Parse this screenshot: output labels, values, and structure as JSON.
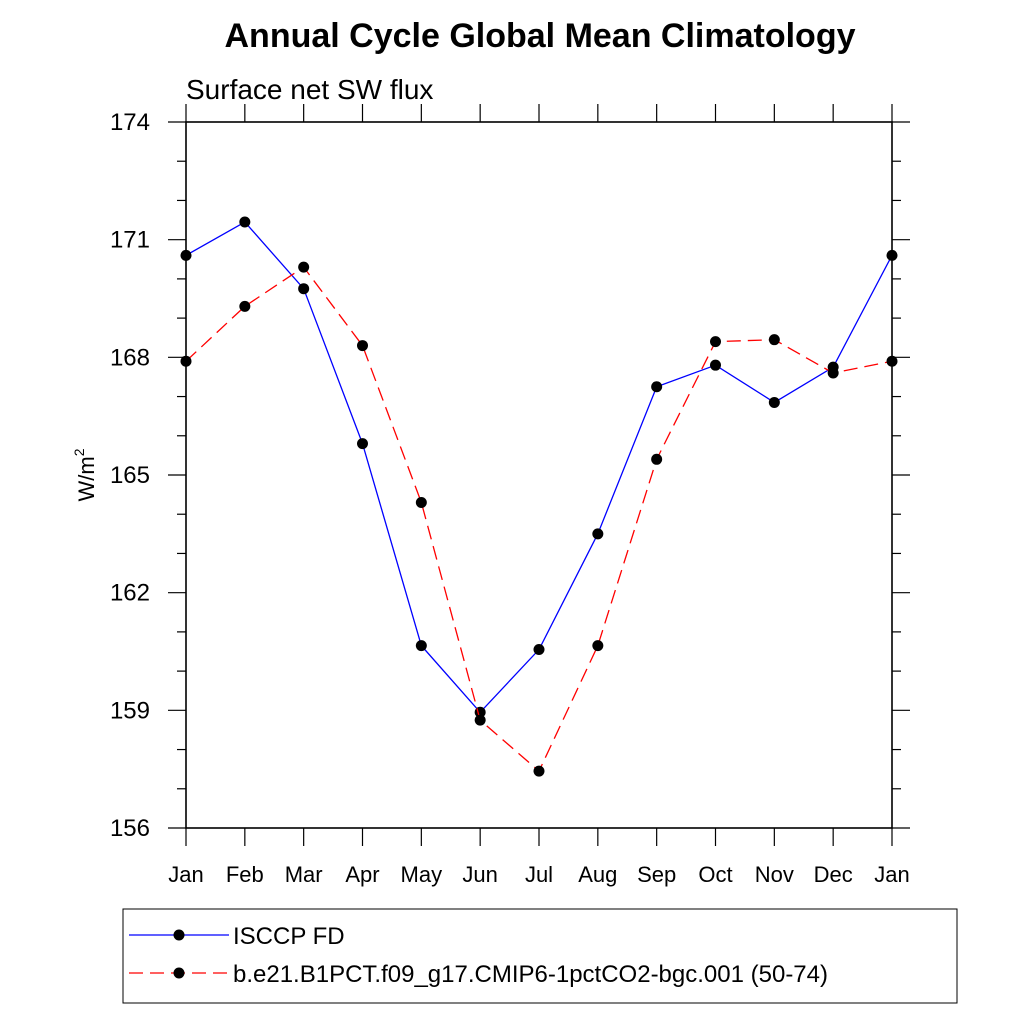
{
  "chart_data": {
    "type": "line",
    "title": "Annual Cycle Global Mean Climatology",
    "subtitle": "Surface net SW flux",
    "xlabel": "",
    "ylabel": "W/m",
    "ylabel_superscript": "2",
    "categories": [
      "Jan",
      "Feb",
      "Mar",
      "Apr",
      "May",
      "Jun",
      "Jul",
      "Aug",
      "Sep",
      "Oct",
      "Nov",
      "Dec",
      "Jan"
    ],
    "ylim": [
      156,
      174
    ],
    "yticks": [
      156,
      159,
      162,
      165,
      168,
      171,
      174
    ],
    "yminor_step": 1,
    "grid": false,
    "legend_position": "bottom",
    "series": [
      {
        "name": "ISCCP FD",
        "color": "#0000ff",
        "dash": "solid",
        "marker": "filled-circle",
        "values": [
          170.6,
          171.45,
          169.75,
          165.8,
          160.65,
          158.95,
          160.55,
          163.5,
          167.25,
          167.8,
          166.85,
          167.75,
          170.6
        ]
      },
      {
        "name": "b.e21.B1PCT.f09_g17.CMIP6-1pctCO2-bgc.001 (50-74)",
        "color": "#ff0000",
        "dash": "dashed",
        "marker": "filled-circle",
        "values": [
          167.9,
          169.3,
          170.3,
          168.3,
          164.3,
          158.75,
          157.45,
          160.65,
          165.4,
          168.4,
          168.45,
          167.6,
          167.9
        ]
      }
    ]
  }
}
